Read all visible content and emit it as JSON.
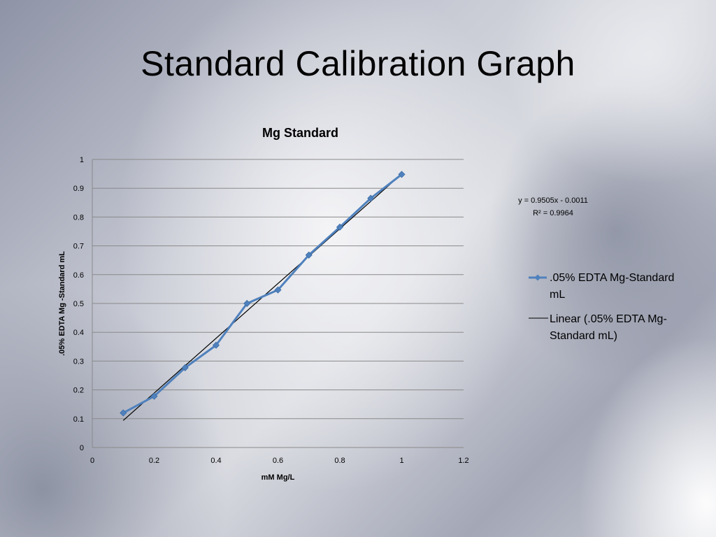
{
  "slide": {
    "title": "Standard Calibration Graph"
  },
  "chart_data": {
    "type": "scatter",
    "title": "Mg Standard",
    "xlabel": "mM Mg/L",
    "ylabel": ".05% EDTA Mg -Standard mL",
    "xlim": [
      0,
      1.2
    ],
    "ylim": [
      0,
      1
    ],
    "xticks": [
      0,
      0.2,
      0.4,
      0.6,
      0.8,
      1,
      1.2
    ],
    "yticks": [
      0,
      0.1,
      0.2,
      0.3,
      0.4,
      0.5,
      0.6,
      0.7,
      0.8,
      0.9,
      1
    ],
    "grid": "horizontal",
    "legend_position": "right",
    "series": [
      {
        "name": ".05% EDTA Mg-Standard mL",
        "style": "line-with-diamond-markers",
        "color": "#4f81bd",
        "x": [
          0.1,
          0.2,
          0.3,
          0.4,
          0.5,
          0.6,
          0.7,
          0.8,
          0.9,
          1.0
        ],
        "y": [
          0.12,
          0.178,
          0.277,
          0.355,
          0.5,
          0.547,
          0.668,
          0.765,
          0.865,
          0.948
        ]
      }
    ],
    "trendline": {
      "name": "Linear (.05% EDTA Mg-Standard mL)",
      "type": "linear",
      "slope": 0.9505,
      "intercept": -0.0011,
      "x_range": [
        0.1,
        1.0
      ],
      "color": "#000000",
      "equation": "y = 0.9505x - 0.0011",
      "r_squared": "R² = 0.9964"
    },
    "legend": [
      {
        "lines": [
          ".05% EDTA Mg-Standard",
          "mL"
        ]
      },
      {
        "lines": [
          "Linear (.05% EDTA Mg-",
          "Standard mL)"
        ]
      }
    ]
  }
}
